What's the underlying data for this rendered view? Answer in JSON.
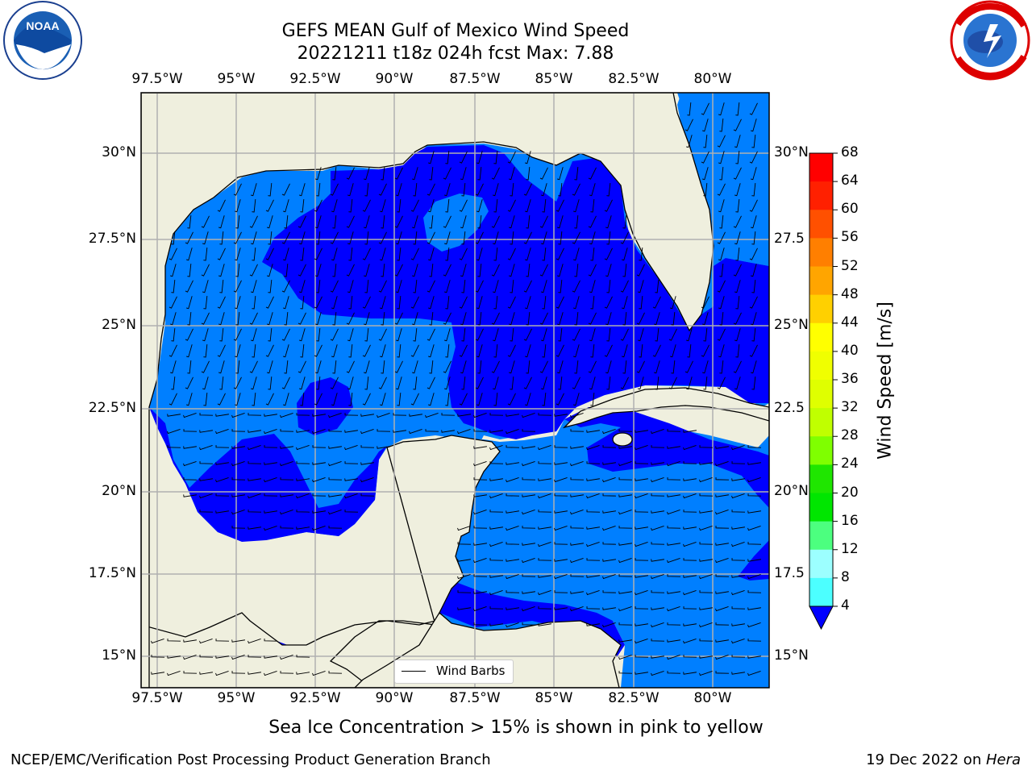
{
  "title": {
    "line1": "GEFS MEAN Gulf of Mexico Wind Speed",
    "line2": "20221211 t18z 024h fcst   Max: 7.88"
  },
  "axes": {
    "lon_labels": [
      "97.5°W",
      "95°W",
      "92.5°W",
      "90°W",
      "87.5°W",
      "85°W",
      "82.5°W",
      "80°W"
    ],
    "lat_labels": [
      "30°N",
      "27.5°N",
      "25°N",
      "22.5°N",
      "20°N",
      "17.5°N",
      "15°N"
    ],
    "right_lat_labels": [
      "30°N",
      "27.5",
      "25°N",
      "22.5",
      "20°N",
      "17.5",
      "15°N"
    ]
  },
  "legend": {
    "label": "Wind Barbs"
  },
  "colorbar": {
    "title": "Wind Speed [m/s]",
    "ticks": [
      "68",
      "64",
      "60",
      "56",
      "52",
      "48",
      "44",
      "40",
      "36",
      "32",
      "28",
      "24",
      "20",
      "16",
      "12",
      "8",
      "4"
    ],
    "colors": [
      "#ff0000",
      "#ff2000",
      "#ff5000",
      "#ff7f00",
      "#ffa500",
      "#ffd000",
      "#ffff00",
      "#f0ff00",
      "#dfff00",
      "#c0ff00",
      "#7fff00",
      "#1fe600",
      "#00e600",
      "#4cff7f",
      "#9cffff",
      "#4cffff",
      "#00ffff",
      "#00e0ff",
      "#007fff",
      "#0000ff"
    ],
    "ocean_low": "#0000ff",
    "ocean_mid": "#007fff",
    "land": "#efefde"
  },
  "note": "Sea Ice Concentration > 15% is shown in pink to yellow",
  "footer": {
    "left": "NCEP/EMC/Verification Post Processing Product Generation Branch",
    "right_prefix": "19 Dec 2022 on ",
    "right_host": "Hera"
  },
  "logos": {
    "noaa_text": "NOAA",
    "noaa_ring": "NATIONAL OCEANIC AND ATMOSPHERIC ADMINISTRATION · U.S. DEPARTMENT OF COMMERCE",
    "nws_ring": "NATIONAL WEATHER SERVICE"
  }
}
